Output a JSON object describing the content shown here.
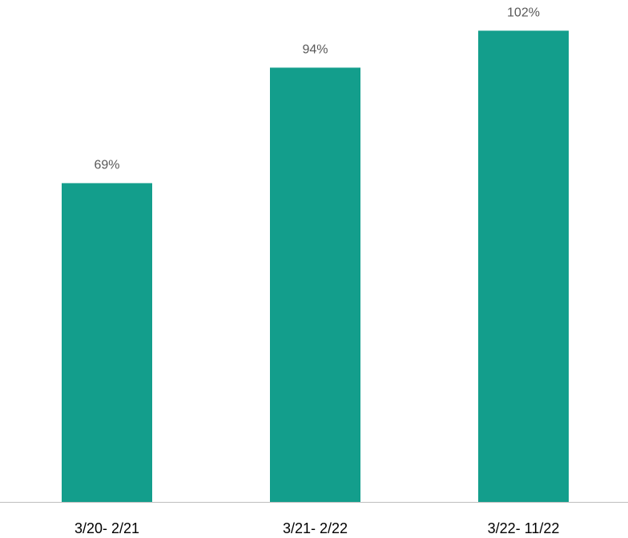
{
  "chart_data": {
    "type": "bar",
    "categories": [
      "3/20- 2/21",
      "3/21- 2/22",
      "3/22- 11/22"
    ],
    "values": [
      69,
      94,
      102
    ],
    "value_labels": [
      "69%",
      "94%",
      "102%"
    ],
    "color": "#139e8c",
    "ylim": [
      0,
      105
    ]
  }
}
